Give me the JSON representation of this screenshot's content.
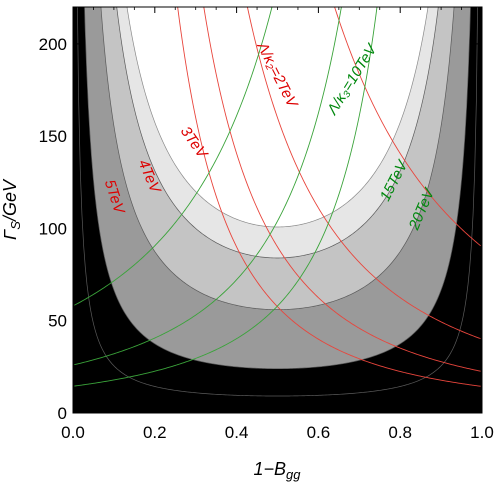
{
  "chart_data": {
    "type": "area",
    "xlabel": "1−B",
    "xlabel_sub": "gg",
    "ylabel": "Γ",
    "ylabel_sub": "S",
    "ylabel_unit": "/GeV",
    "xlim": [
      0,
      1
    ],
    "ylim": [
      0,
      220
    ],
    "x_ticks": [
      0.0,
      0.2,
      0.4,
      0.6,
      0.8,
      1.0
    ],
    "x_tick_labels": [
      "0.0",
      "0.2",
      "0.4",
      "0.6",
      "0.8",
      "1.0"
    ],
    "y_ticks": [
      0,
      50,
      100,
      150,
      200
    ],
    "y_tick_labels": [
      "0",
      "50",
      "100",
      "150",
      "200"
    ],
    "grid": false,
    "colors": {
      "excluded": "#000000",
      "band_dark": "#9a9a9a",
      "band_mid": "#c4c4c4",
      "band_light": "#e6e6e6",
      "allowed": "#ffffff",
      "kappa2_lines": "#e8453c",
      "kappa3_lines": "#3aa33a",
      "kappa2_text": "#dd0000",
      "kappa3_text": "#00880e"
    },
    "bands": [
      {
        "shade": "excluded",
        "coeff": 2.3
      },
      {
        "shade": "band_dark",
        "coeff": 6.0
      },
      {
        "shade": "band_mid",
        "coeff": 14.0
      },
      {
        "shade": "band_light",
        "coeff": 21.0
      },
      {
        "shade": "allowed",
        "coeff": 25.2
      }
    ],
    "kappa2_curves": [
      {
        "label": "Λ/κ₂=2TeV",
        "A": 90
      },
      {
        "label": "3TeV",
        "A": 40
      },
      {
        "label": "4TeV",
        "A": 22.5
      },
      {
        "label": "5TeV",
        "A": 14.4
      }
    ],
    "kappa3_curves": [
      {
        "label": "Λ/κ₃=10TeV",
        "B": 58
      },
      {
        "label": "15TeV",
        "B": 26
      },
      {
        "label": "20TeV",
        "B": 14.5
      }
    ]
  }
}
